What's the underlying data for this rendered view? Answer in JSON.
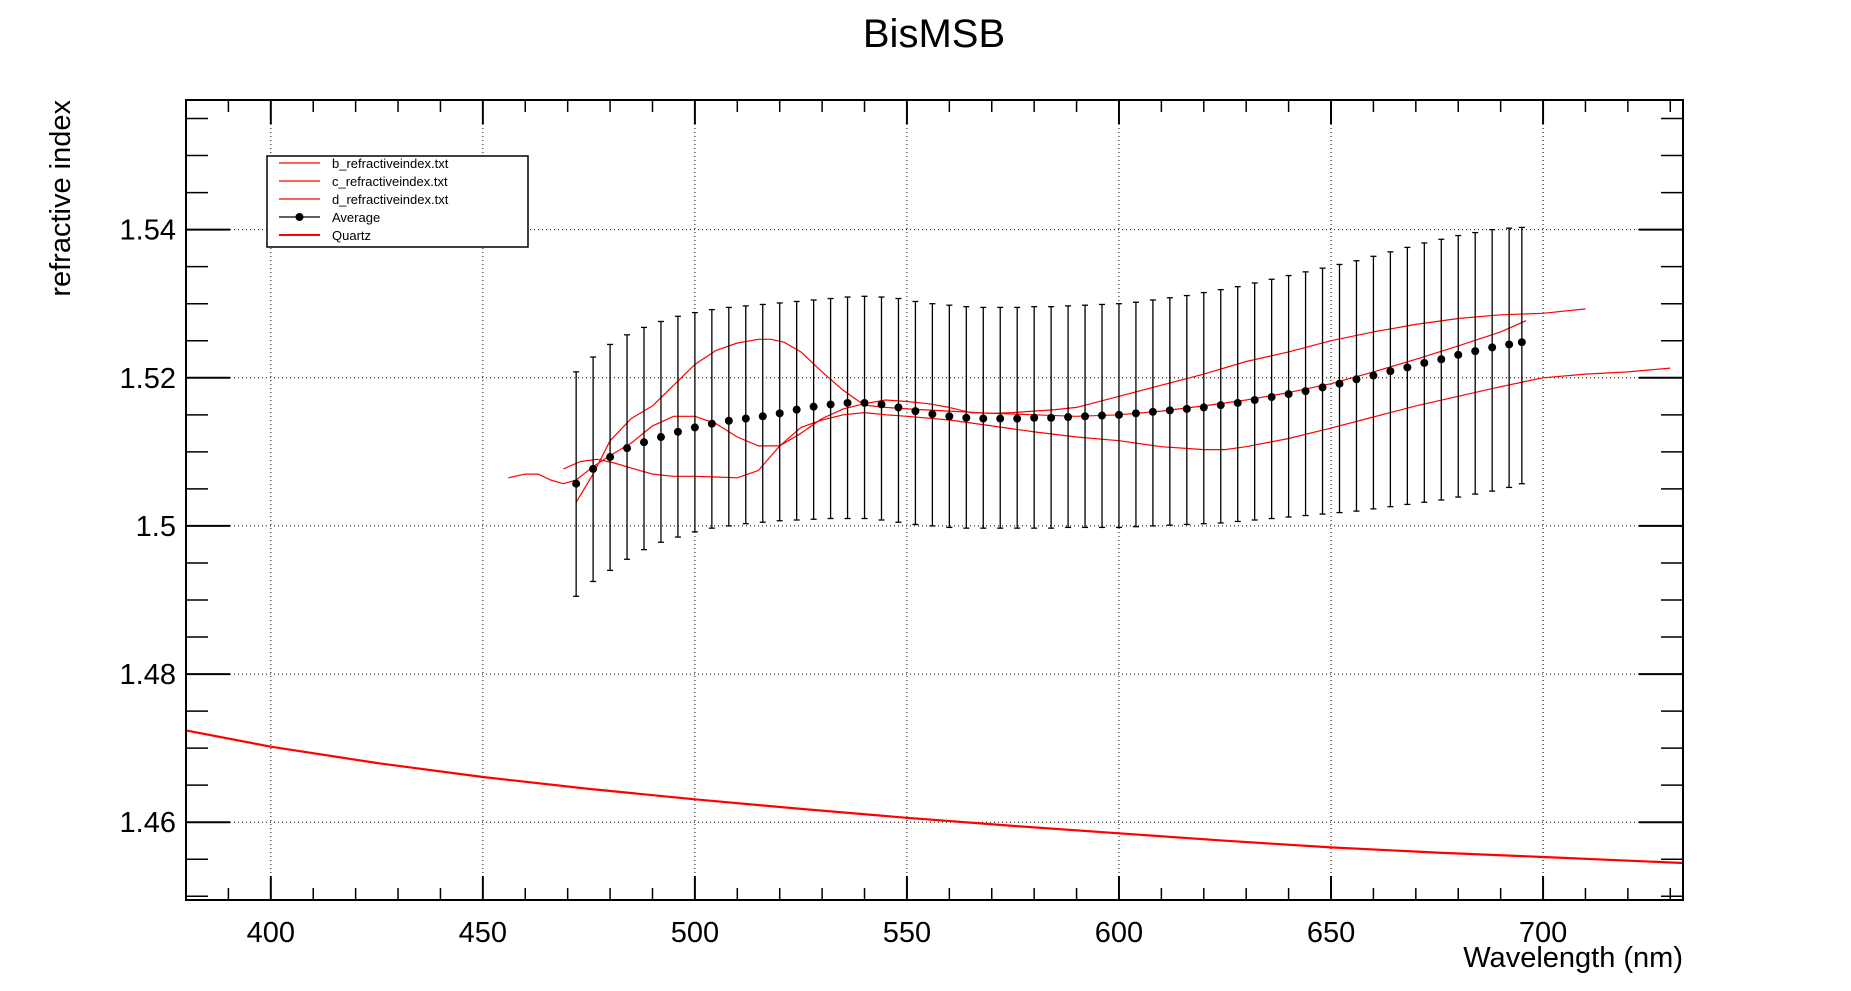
{
  "chart_data": {
    "type": "line",
    "title": "BisMSB",
    "xlabel": "Wavelength (nm)",
    "ylabel": "refractive index",
    "xlim": [
      380,
      733
    ],
    "ylim": [
      1.4495,
      1.5575
    ],
    "grid": true,
    "legend_position": "top-left",
    "x_ticks": [
      {
        "value": 400,
        "label": "400"
      },
      {
        "value": 450,
        "label": "450"
      },
      {
        "value": 500,
        "label": "500"
      },
      {
        "value": 550,
        "label": "550"
      },
      {
        "value": 600,
        "label": "600"
      },
      {
        "value": 650,
        "label": "650"
      },
      {
        "value": 700,
        "label": "700"
      }
    ],
    "y_ticks": [
      {
        "value": 1.46,
        "label": "1.46"
      },
      {
        "value": 1.48,
        "label": "1.48"
      },
      {
        "value": 1.5,
        "label": "1.5"
      },
      {
        "value": 1.52,
        "label": "1.52"
      },
      {
        "value": 1.54,
        "label": "1.54"
      }
    ],
    "x_minor_step": 10,
    "y_minor_step": 0.005,
    "series": [
      {
        "name": "b_refractiveindex.txt",
        "color": "#ff0000",
        "style": "line",
        "x": [
          456,
          460,
          463,
          466,
          469,
          472,
          476,
          480,
          485,
          490,
          495,
          500,
          505,
          510,
          515,
          520,
          525,
          530,
          535,
          540,
          545,
          550,
          555,
          560,
          565,
          570,
          575,
          580,
          585,
          590,
          600,
          610,
          620,
          630,
          640,
          650,
          660,
          670,
          680,
          690,
          700,
          710
        ],
        "y": [
          1.5065,
          1.507,
          1.507,
          1.5062,
          1.5057,
          1.5062,
          1.508,
          1.5095,
          1.5112,
          1.5135,
          1.5148,
          1.5148,
          1.5138,
          1.512,
          1.5108,
          1.5108,
          1.5125,
          1.5145,
          1.5158,
          1.5165,
          1.517,
          1.5168,
          1.5165,
          1.516,
          1.5153,
          1.5152,
          1.5153,
          1.5155,
          1.5157,
          1.516,
          1.5175,
          1.519,
          1.5205,
          1.5222,
          1.5235,
          1.525,
          1.5262,
          1.5272,
          1.528,
          1.5285,
          1.5287,
          1.5293
        ]
      },
      {
        "name": "c_refractiveindex.txt",
        "color": "#ff0000",
        "style": "line",
        "x": [
          469,
          473,
          477,
          481,
          485,
          490,
          495,
          500,
          505,
          510,
          515,
          520,
          525,
          530,
          535,
          540,
          545,
          550,
          560,
          570,
          580,
          590,
          600,
          610,
          620,
          625,
          630,
          640,
          650,
          660,
          670,
          680,
          690,
          700,
          710,
          720,
          730
        ],
        "y": [
          1.5077,
          1.5087,
          1.509,
          1.5085,
          1.5078,
          1.507,
          1.5067,
          1.5067,
          1.5066,
          1.5065,
          1.5075,
          1.5108,
          1.5133,
          1.5143,
          1.515,
          1.5153,
          1.515,
          1.5148,
          1.5143,
          1.5135,
          1.5127,
          1.512,
          1.5115,
          1.5107,
          1.5103,
          1.5103,
          1.5107,
          1.5118,
          1.5132,
          1.5147,
          1.5162,
          1.5175,
          1.5188,
          1.52,
          1.5205,
          1.5208,
          1.5213
        ]
      },
      {
        "name": "d_refractiveindex.txt",
        "color": "#ff0000",
        "style": "line",
        "x": [
          472,
          476,
          480,
          485,
          490,
          495,
          500,
          505,
          510,
          515,
          518,
          521,
          525,
          530,
          535,
          540,
          545,
          550,
          560,
          570,
          580,
          590,
          600,
          610,
          620,
          630,
          640,
          650,
          660,
          670,
          680,
          690,
          696
        ],
        "y": [
          1.5032,
          1.507,
          1.5115,
          1.5145,
          1.5162,
          1.519,
          1.5218,
          1.5237,
          1.5247,
          1.5252,
          1.5252,
          1.5248,
          1.5235,
          1.5208,
          1.5183,
          1.5163,
          1.516,
          1.5158,
          1.5155,
          1.5152,
          1.515,
          1.5148,
          1.515,
          1.5155,
          1.5162,
          1.517,
          1.518,
          1.5192,
          1.5208,
          1.5225,
          1.5243,
          1.5262,
          1.5277
        ]
      },
      {
        "name": "Average",
        "color": "#000000",
        "style": "markers-errorbars",
        "x": [
          472,
          476,
          480,
          484,
          488,
          492,
          496,
          500,
          504,
          508,
          512,
          516,
          520,
          524,
          528,
          532,
          536,
          540,
          544,
          548,
          552,
          556,
          560,
          564,
          568,
          572,
          576,
          580,
          584,
          588,
          592,
          596,
          600,
          604,
          608,
          612,
          616,
          620,
          624,
          628,
          632,
          636,
          640,
          644,
          648,
          652,
          656,
          660,
          664,
          668,
          672,
          676,
          680,
          684,
          688,
          692,
          695
        ],
        "y": [
          1.5057,
          1.5077,
          1.5093,
          1.5105,
          1.5113,
          1.512,
          1.5127,
          1.5133,
          1.5138,
          1.5142,
          1.5145,
          1.5148,
          1.5152,
          1.5157,
          1.5161,
          1.5164,
          1.5166,
          1.5166,
          1.5164,
          1.516,
          1.5155,
          1.5151,
          1.5148,
          1.5146,
          1.5145,
          1.5145,
          1.5145,
          1.5146,
          1.5146,
          1.5147,
          1.5148,
          1.5149,
          1.515,
          1.5152,
          1.5154,
          1.5156,
          1.5158,
          1.516,
          1.5163,
          1.5166,
          1.517,
          1.5174,
          1.5178,
          1.5182,
          1.5187,
          1.5192,
          1.5198,
          1.5203,
          1.5209,
          1.5214,
          1.522,
          1.5225,
          1.5231,
          1.5236,
          1.5241,
          1.5245,
          1.5248
        ],
        "y_low": [
          1.4905,
          1.4925,
          1.494,
          1.4955,
          1.4968,
          1.4978,
          1.4985,
          1.4992,
          1.4997,
          1.5,
          1.5003,
          1.5005,
          1.5007,
          1.5008,
          1.5009,
          1.501,
          1.501,
          1.501,
          1.5008,
          1.5005,
          1.5002,
          1.5,
          1.4998,
          1.4997,
          1.4997,
          1.4997,
          1.4997,
          1.4997,
          1.4997,
          1.4998,
          1.4998,
          1.4998,
          1.4998,
          1.4999,
          1.5,
          1.5001,
          1.5002,
          1.5003,
          1.5004,
          1.5006,
          1.5008,
          1.501,
          1.5012,
          1.5014,
          1.5016,
          1.5018,
          1.502,
          1.5023,
          1.5026,
          1.5029,
          1.5032,
          1.5035,
          1.5039,
          1.5043,
          1.5047,
          1.5052,
          1.5057
        ],
        "y_high": [
          1.5208,
          1.5228,
          1.5245,
          1.5258,
          1.5268,
          1.5276,
          1.5283,
          1.5288,
          1.5292,
          1.5295,
          1.5297,
          1.5299,
          1.5301,
          1.5303,
          1.5305,
          1.5307,
          1.5309,
          1.531,
          1.5309,
          1.5307,
          1.5303,
          1.53,
          1.5298,
          1.5296,
          1.5295,
          1.5295,
          1.5295,
          1.5296,
          1.5296,
          1.5297,
          1.5298,
          1.5299,
          1.53,
          1.5302,
          1.5305,
          1.5308,
          1.5311,
          1.5315,
          1.5319,
          1.5323,
          1.5328,
          1.5333,
          1.5338,
          1.5343,
          1.5348,
          1.5353,
          1.5358,
          1.5364,
          1.537,
          1.5376,
          1.5382,
          1.5387,
          1.5392,
          1.5396,
          1.54,
          1.5402,
          1.5403
        ]
      },
      {
        "name": "Quartz",
        "color": "#ff0000",
        "style": "line-thick",
        "x": [
          380,
          400,
          425,
          450,
          475,
          500,
          525,
          550,
          575,
          600,
          625,
          650,
          675,
          700,
          733
        ],
        "y": [
          1.4724,
          1.4702,
          1.468,
          1.4661,
          1.4645,
          1.4631,
          1.4618,
          1.4606,
          1.4595,
          1.4585,
          1.4575,
          1.4566,
          1.4559,
          1.4553,
          1.4545
        ]
      }
    ]
  }
}
